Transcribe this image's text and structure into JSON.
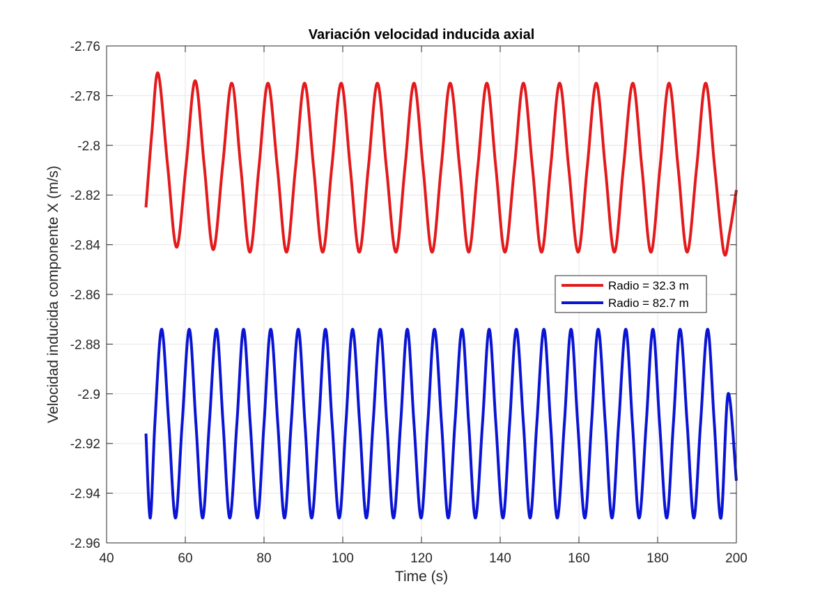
{
  "chart_data": {
    "type": "line",
    "title": "Variación velocidad inducida axial",
    "xlabel": "Time (s)",
    "ylabel": "Velocidad inducida componente X (m/s)",
    "xlim": [
      40,
      200
    ],
    "ylim": [
      -2.96,
      -2.76
    ],
    "x_ticks": [
      40,
      60,
      80,
      100,
      120,
      140,
      160,
      180,
      200
    ],
    "x_tick_labels": [
      "40",
      "60",
      "80",
      "100",
      "120",
      "140",
      "160",
      "180",
      "200"
    ],
    "y_ticks": [
      -2.76,
      -2.78,
      -2.8,
      -2.82,
      -2.84,
      -2.86,
      -2.88,
      -2.9,
      -2.92,
      -2.94,
      -2.96
    ],
    "y_tick_labels": [
      "-2.76",
      "-2.78",
      "-2.8",
      "-2.82",
      "-2.84",
      "-2.86",
      "-2.88",
      "-2.9",
      "-2.92",
      "-2.94",
      "-2.96"
    ],
    "grid": true,
    "legend_position": "right",
    "series": [
      {
        "name": "Radio = 32.3 m",
        "color": "#e31a1c",
        "x": [
          50,
          51.5,
          53.1,
          55.5,
          57.8,
          60.2,
          62.5,
          64.8,
          67.1,
          69.5,
          71.8,
          74.1,
          76.4,
          78.7,
          81.0,
          83.4,
          85.7,
          88.0,
          90.3,
          92.6,
          94.9,
          97.2,
          99.6,
          101.9,
          104.2,
          106.5,
          108.8,
          111.1,
          113.5,
          115.8,
          118.1,
          120.4,
          122.7,
          125.0,
          127.3,
          129.7,
          132.0,
          134.3,
          136.6,
          138.9,
          141.2,
          143.6,
          145.9,
          148.2,
          150.5,
          152.8,
          155.1,
          157.4,
          159.8,
          162.1,
          164.4,
          166.7,
          169.0,
          171.3,
          173.7,
          176.0,
          178.3,
          180.6,
          182.9,
          185.2,
          187.5,
          189.9,
          192.2,
          194.5,
          196.8,
          198.3,
          200
        ],
        "y": [
          -2.825,
          -2.795,
          -2.771,
          -2.808,
          -2.841,
          -2.808,
          -2.774,
          -2.808,
          -2.842,
          -2.808,
          -2.775,
          -2.809,
          -2.843,
          -2.809,
          -2.775,
          -2.809,
          -2.843,
          -2.809,
          -2.775,
          -2.809,
          -2.843,
          -2.809,
          -2.775,
          -2.809,
          -2.843,
          -2.809,
          -2.775,
          -2.809,
          -2.843,
          -2.809,
          -2.775,
          -2.809,
          -2.843,
          -2.809,
          -2.775,
          -2.809,
          -2.843,
          -2.809,
          -2.775,
          -2.809,
          -2.843,
          -2.809,
          -2.775,
          -2.809,
          -2.843,
          -2.809,
          -2.775,
          -2.809,
          -2.843,
          -2.809,
          -2.775,
          -2.809,
          -2.843,
          -2.809,
          -2.775,
          -2.809,
          -2.843,
          -2.809,
          -2.775,
          -2.809,
          -2.843,
          -2.809,
          -2.775,
          -2.809,
          -2.843,
          -2.835,
          -2.818
        ]
      },
      {
        "name": "Radio = 82.7 m",
        "color": "#0a14d4",
        "x": [
          50,
          51.1,
          52.3,
          54.0,
          55.8,
          57.5,
          59.2,
          61.0,
          62.7,
          64.4,
          66.1,
          67.9,
          69.6,
          71.3,
          73.1,
          74.8,
          76.5,
          78.3,
          80.0,
          81.7,
          83.5,
          85.2,
          86.9,
          88.7,
          90.4,
          92.1,
          93.9,
          95.6,
          97.3,
          99.1,
          100.8,
          102.5,
          104.3,
          106.0,
          107.7,
          109.5,
          111.2,
          112.9,
          114.7,
          116.4,
          118.1,
          119.9,
          121.6,
          123.3,
          125.1,
          126.8,
          128.5,
          130.3,
          132.0,
          133.7,
          135.5,
          137.2,
          138.9,
          140.7,
          142.4,
          144.1,
          145.9,
          147.6,
          149.3,
          151.1,
          152.8,
          154.5,
          156.3,
          158.0,
          159.7,
          161.5,
          163.2,
          164.9,
          166.7,
          168.4,
          170.1,
          171.9,
          173.6,
          175.3,
          177.1,
          178.8,
          180.5,
          182.3,
          184.0,
          185.7,
          187.5,
          189.2,
          190.9,
          192.7,
          194.4,
          196.1,
          197.9,
          200
        ],
        "y": [
          -2.916,
          -2.95,
          -2.911,
          -2.874,
          -2.912,
          -2.95,
          -2.912,
          -2.874,
          -2.912,
          -2.95,
          -2.912,
          -2.874,
          -2.912,
          -2.95,
          -2.912,
          -2.874,
          -2.912,
          -2.95,
          -2.912,
          -2.874,
          -2.912,
          -2.95,
          -2.912,
          -2.874,
          -2.912,
          -2.95,
          -2.912,
          -2.874,
          -2.912,
          -2.95,
          -2.912,
          -2.874,
          -2.912,
          -2.95,
          -2.912,
          -2.874,
          -2.912,
          -2.95,
          -2.912,
          -2.874,
          -2.912,
          -2.95,
          -2.912,
          -2.874,
          -2.912,
          -2.95,
          -2.912,
          -2.874,
          -2.912,
          -2.95,
          -2.912,
          -2.874,
          -2.912,
          -2.95,
          -2.912,
          -2.874,
          -2.912,
          -2.95,
          -2.912,
          -2.874,
          -2.912,
          -2.95,
          -2.912,
          -2.874,
          -2.912,
          -2.95,
          -2.912,
          -2.874,
          -2.912,
          -2.95,
          -2.912,
          -2.874,
          -2.912,
          -2.95,
          -2.912,
          -2.874,
          -2.912,
          -2.95,
          -2.912,
          -2.874,
          -2.912,
          -2.95,
          -2.912,
          -2.874,
          -2.912,
          -2.95,
          -2.9,
          -2.935
        ]
      }
    ]
  }
}
